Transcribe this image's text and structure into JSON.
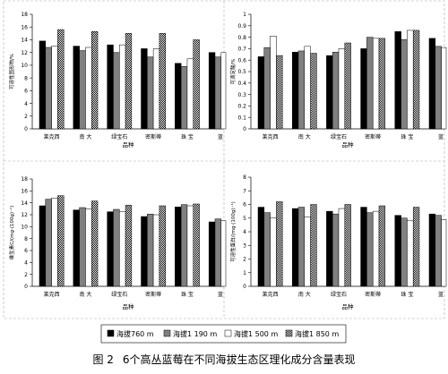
{
  "figure": {
    "label": "图 2",
    "caption": "6个高丛蓝莓在不同海拔生态区理化成分含量表现"
  },
  "legend": {
    "entries": [
      "海拔760 m",
      "海拔1 190 m",
      "海拔1 500 m",
      "海拔1 850 m"
    ]
  },
  "chart_data": [
    {
      "type": "bar",
      "panel": "top-left",
      "categories": [
        "莱克西",
        "南 大",
        "绿宝石",
        "密斯蒂",
        "珠 宝",
        "蓝"
      ],
      "xlabel": "品种",
      "ylabel": "可溶性固形物/%",
      "ylim": [
        0,
        18
      ],
      "yticks": [
        "0",
        "2",
        "4",
        "6",
        "8",
        "10",
        "12",
        "14",
        "16",
        "18"
      ],
      "series": [
        {
          "name": "海拔760 m",
          "values": [
            13.8,
            13.0,
            13.2,
            12.6,
            10.3,
            12.0
          ]
        },
        {
          "name": "海拔1 190 m",
          "values": [
            12.8,
            12.3,
            12.0,
            11.3,
            9.8,
            11.3
          ]
        },
        {
          "name": "海拔1 500 m",
          "values": [
            13.0,
            12.8,
            13.2,
            12.6,
            11.0,
            12.0
          ]
        },
        {
          "name": "海拔1 850 m",
          "values": [
            15.6,
            15.3,
            15.0,
            15.0,
            14.0,
            12.0
          ]
        }
      ]
    },
    {
      "type": "bar",
      "panel": "top-right",
      "categories": [
        "莱克西",
        "南 大",
        "绿宝石",
        "密斯蒂",
        "珠 宝",
        "蓝"
      ],
      "xlabel": "品种",
      "ylabel": "可滴定酸/%",
      "ylim": [
        0,
        1
      ],
      "yticks": [
        "0",
        "0.1",
        "0.2",
        "0.3",
        "0.4",
        "0.5",
        "0.6",
        "0.7",
        "0.8",
        "0.9",
        "1"
      ],
      "series": [
        {
          "name": "海拔760 m",
          "values": [
            0.63,
            0.67,
            0.64,
            0.7,
            0.85,
            0.79
          ]
        },
        {
          "name": "海拔1 190 m",
          "values": [
            0.71,
            0.68,
            0.67,
            0.8,
            0.78,
            0.72
          ]
        },
        {
          "name": "海拔1 500 m",
          "values": [
            0.81,
            0.72,
            0.7,
            0.79,
            0.86,
            0.71
          ]
        },
        {
          "name": "海拔1 850 m",
          "values": [
            0.64,
            0.66,
            0.75,
            0.79,
            0.86,
            0.71
          ]
        }
      ]
    },
    {
      "type": "bar",
      "panel": "bottom-left",
      "categories": [
        "莱克西",
        "南 大",
        "绿宝石",
        "密斯蒂",
        "珠 宝",
        "蓝"
      ],
      "xlabel": "品种",
      "ylabel": "维生素C/(mg·(100g)⁻¹)",
      "ylim": [
        0,
        18
      ],
      "yticks": [
        "0",
        "2",
        "4",
        "6",
        "8",
        "10",
        "12",
        "14",
        "16",
        "18"
      ],
      "series": [
        {
          "name": "海拔760 m",
          "values": [
            13.5,
            12.8,
            12.5,
            11.7,
            13.3,
            10.8
          ]
        },
        {
          "name": "海拔1 190 m",
          "values": [
            14.6,
            13.2,
            12.9,
            12.1,
            13.7,
            11.3
          ]
        },
        {
          "name": "海拔1 500 m",
          "values": [
            14.8,
            13.0,
            12.5,
            12.0,
            13.5,
            11.0
          ]
        },
        {
          "name": "海拔1 850 m",
          "values": [
            15.2,
            14.3,
            13.6,
            13.5,
            13.8,
            11.5
          ]
        }
      ]
    },
    {
      "type": "bar",
      "panel": "bottom-right",
      "categories": [
        "莱克西",
        "南 大",
        "绿宝石",
        "密斯蒂",
        "珠 宝",
        "蓝"
      ],
      "xlabel": "品种",
      "ylabel": "可溶性蛋白/(mg·(100g)⁻¹)",
      "ylim": [
        0,
        8
      ],
      "yticks": [
        "0",
        "1",
        "2",
        "3",
        "4",
        "5",
        "6",
        "7",
        "8"
      ],
      "series": [
        {
          "name": "海拔760 m",
          "values": [
            5.8,
            5.7,
            5.5,
            5.8,
            5.2,
            5.3
          ]
        },
        {
          "name": "海拔1 190 m",
          "values": [
            5.4,
            5.8,
            5.3,
            5.4,
            5.0,
            5.2
          ]
        },
        {
          "name": "海拔1 500 m",
          "values": [
            5.0,
            5.1,
            5.7,
            5.5,
            4.8,
            4.9
          ]
        },
        {
          "name": "海拔1 850 m",
          "values": [
            6.2,
            6.0,
            6.0,
            5.9,
            5.8,
            5.0
          ]
        }
      ]
    }
  ]
}
